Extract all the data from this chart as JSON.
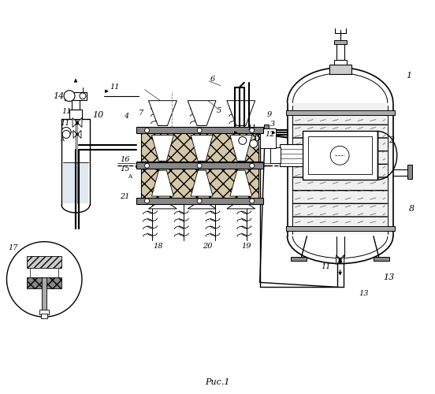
{
  "title": "Рис.1",
  "bg_color": "#ffffff",
  "line_color": "#000000",
  "fig_width": 5.52,
  "fig_height": 5.0,
  "dpi": 100
}
